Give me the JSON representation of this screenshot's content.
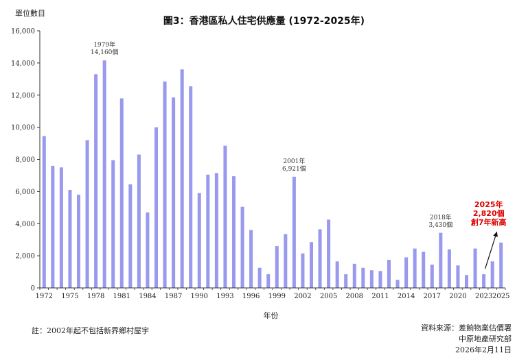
{
  "chart_data": {
    "type": "bar",
    "title": "圖3：香港區私人住宅供應量 (1972-2025年)",
    "ylabel": "單位數目",
    "xlabel": "年份",
    "ylim": [
      0,
      16000
    ],
    "yticks": [
      0,
      2000,
      4000,
      6000,
      8000,
      10000,
      12000,
      14000,
      16000
    ],
    "ytick_labels": [
      "0",
      "2,000",
      "4,000",
      "6,000",
      "8,000",
      "10,000",
      "12,000",
      "14,000",
      "16,000"
    ],
    "xtick_years": [
      1972,
      1975,
      1978,
      1981,
      1984,
      1987,
      1990,
      1993,
      1996,
      1999,
      2002,
      2005,
      2008,
      2011,
      2014,
      2017,
      2020,
      2023,
      2025
    ],
    "bar_color": "#9999ee",
    "years": [
      1972,
      1973,
      1974,
      1975,
      1976,
      1977,
      1978,
      1979,
      1980,
      1981,
      1982,
      1983,
      1984,
      1985,
      1986,
      1987,
      1988,
      1989,
      1990,
      1991,
      1992,
      1993,
      1994,
      1995,
      1996,
      1997,
      1998,
      1999,
      2000,
      2001,
      2002,
      2003,
      2004,
      2005,
      2006,
      2007,
      2008,
      2009,
      2010,
      2011,
      2012,
      2013,
      2014,
      2015,
      2016,
      2017,
      2018,
      2019,
      2020,
      2021,
      2022,
      2023,
      2024,
      2025
    ],
    "values": [
      9450,
      7600,
      7500,
      6100,
      5800,
      9200,
      13300,
      14160,
      7950,
      11800,
      6450,
      8300,
      4700,
      10000,
      12850,
      11850,
      13600,
      12550,
      5900,
      7050,
      7150,
      8850,
      6950,
      5050,
      3600,
      1250,
      850,
      2600,
      3350,
      6921,
      2150,
      2850,
      3650,
      4250,
      1650,
      850,
      1500,
      1250,
      1100,
      1050,
      1750,
      500,
      1900,
      2450,
      2250,
      1450,
      3430,
      2400,
      1400,
      800,
      2450,
      850,
      1650,
      2820
    ],
    "annotations": [
      {
        "year": 1979,
        "lines": [
          "1979年",
          "14,160個"
        ]
      },
      {
        "year": 2001,
        "lines": [
          "2001年",
          "6,921個"
        ]
      },
      {
        "year": 2018,
        "lines": [
          "2018年",
          "3,430個"
        ]
      }
    ],
    "highlight": {
      "year": 2025,
      "lines": [
        "2025年",
        "2,820個",
        "創7年新高"
      ],
      "color": "#e00000"
    },
    "grid": false,
    "legend": "none"
  },
  "footer": {
    "note": "註：2002年起不包括新界鄉村屋宇",
    "source_lines": [
      "資料來源：差餉物業估價署",
      "中原地產研究部",
      "2026年2月11日"
    ]
  }
}
